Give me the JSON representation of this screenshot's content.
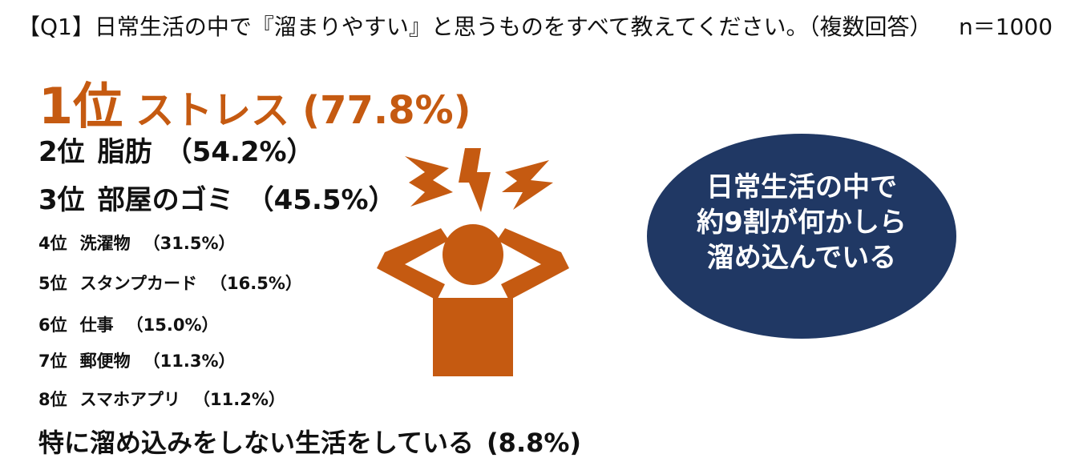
{
  "header": {
    "title": "【Q1】日常生活の中で『溜まりやすい』と思うものをすべて教えてください。（複数回答）",
    "sample": "n＝1000"
  },
  "ranking": [
    {
      "rank": "1位",
      "name": "ストレス",
      "share": "(77.8%)"
    },
    {
      "rank": "2位",
      "name": "脂肪",
      "share": "（54.2%）"
    },
    {
      "rank": "3位",
      "name": "部屋のゴミ",
      "share": "（45.5%）"
    },
    {
      "rank": "4位",
      "name": "洗濯物",
      "share": "（31.5%）"
    },
    {
      "rank": "5位",
      "name": "スタンプカード",
      "share": "（16.5%）"
    },
    {
      "rank": "6位",
      "name": "仕事",
      "share": "（15.0%）"
    },
    {
      "rank": "7位",
      "name": "郵便物",
      "share": "（11.3%）"
    },
    {
      "rank": "8位",
      "name": "スマホアプリ",
      "share": "（11.2%）"
    }
  ],
  "no_storage": {
    "name": "特に溜め込みをしない生活をしている",
    "share": "(8.8%)"
  },
  "callout": {
    "lines": [
      "日常生活の中で",
      "約9割が何かしら",
      "溜め込んでいる"
    ]
  }
}
